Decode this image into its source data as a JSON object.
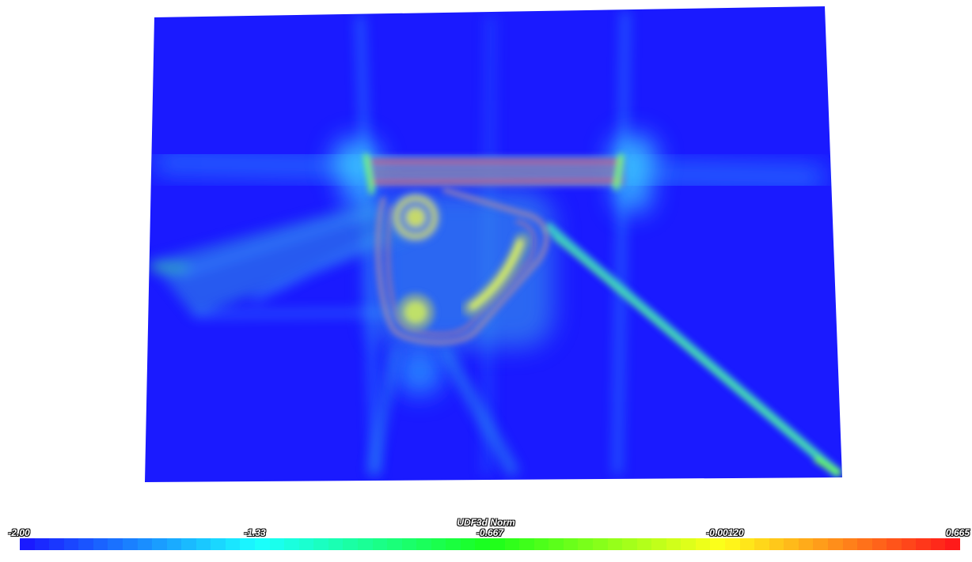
{
  "colorbar": {
    "title": "UDF3d Norm",
    "min_label": "-2.00",
    "ticks": [
      "-2.00",
      "-1.33",
      "-0.667",
      "-0.00120",
      "0.665"
    ],
    "min": -2.0,
    "max": 0.665,
    "segments": 64,
    "colors": [
      "#1a1aff",
      "#1affff",
      "#1aff1a",
      "#ffff1a",
      "#ff1a1a"
    ]
  },
  "scene": {
    "background": "#ffffff",
    "plane_color": "#1a1aff"
  }
}
